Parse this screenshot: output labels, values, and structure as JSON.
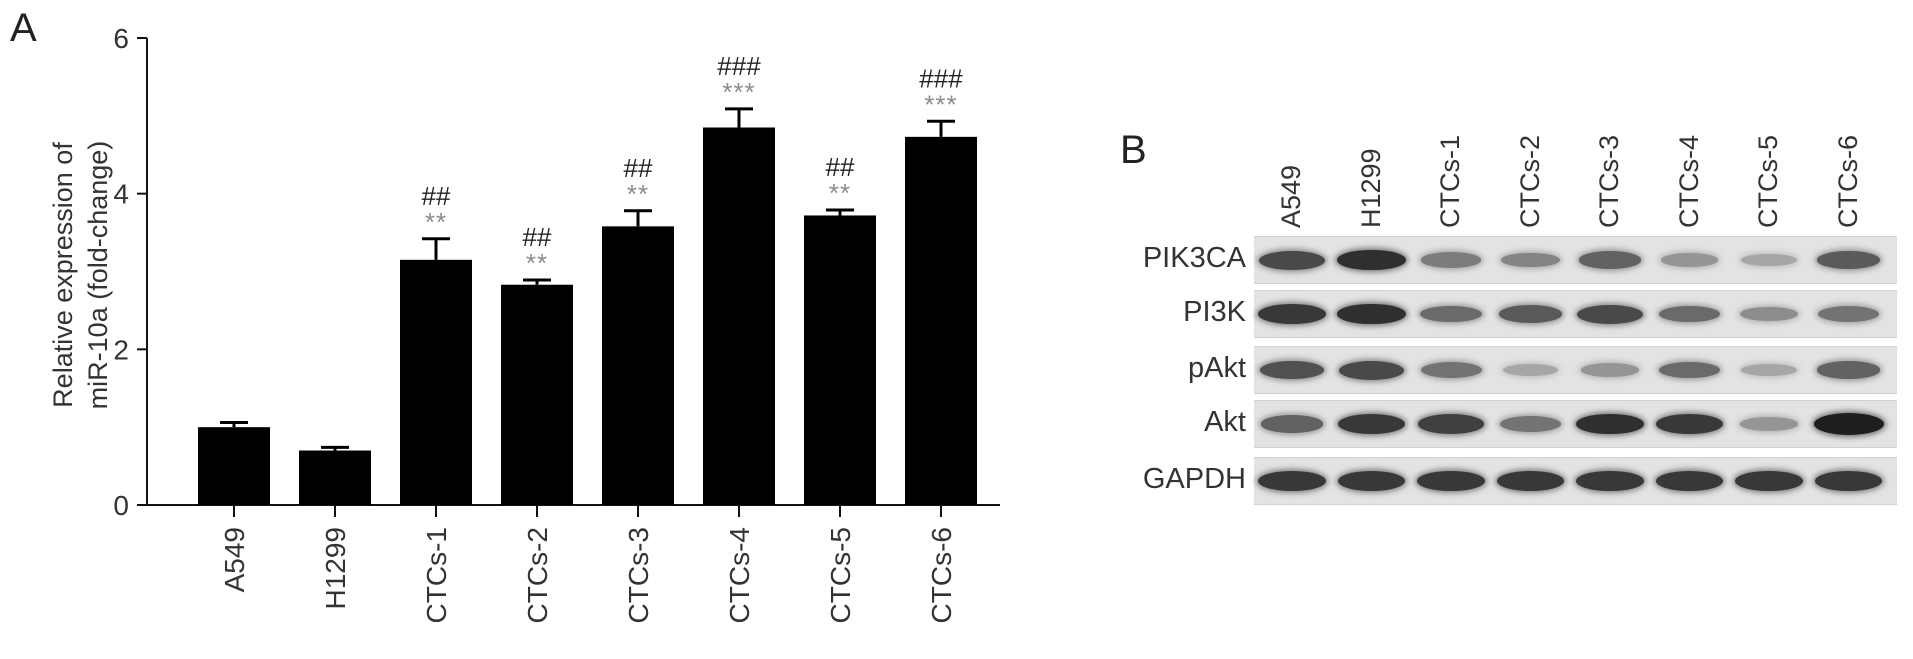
{
  "panel_a_label": "A",
  "panel_b_label": "B",
  "chart_data": {
    "type": "bar",
    "categories": [
      "A549",
      "H1299",
      "CTCs-1",
      "CTCs-2",
      "CTCs-3",
      "CTCs-4",
      "CTCs-5",
      "CTCs-6"
    ],
    "values": [
      1.0,
      0.7,
      3.15,
      2.83,
      3.58,
      4.85,
      3.72,
      4.73
    ],
    "errors": [
      0.06,
      0.04,
      0.27,
      0.06,
      0.2,
      0.24,
      0.07,
      0.2
    ],
    "ylabel_line1": "Relative expression of",
    "ylabel_line2": "miR-10a (fold-change)",
    "xlabel": "",
    "ylim": [
      0,
      6
    ],
    "yticks": [
      "0",
      "2",
      "4",
      "6"
    ],
    "hash_annotations": [
      "",
      "",
      "##",
      "##",
      "##",
      "###",
      "##",
      "###"
    ],
    "star_annotations": [
      "",
      "",
      "**",
      "**",
      "**",
      "***",
      "**",
      "***"
    ],
    "bar_color": "#000000",
    "star_color": "#8c8c8c"
  },
  "blot": {
    "lanes": [
      "A549",
      "H1299",
      "CTCs-1",
      "CTCs-2",
      "CTCs-3",
      "CTCs-4",
      "CTCs-5",
      "CTCs-6"
    ],
    "rows": [
      {
        "name": "PIK3CA",
        "intensity": [
          0.75,
          0.9,
          0.45,
          0.4,
          0.6,
          0.3,
          0.2,
          0.65
        ]
      },
      {
        "name": "PI3K",
        "intensity": [
          0.85,
          0.9,
          0.55,
          0.65,
          0.75,
          0.55,
          0.35,
          0.5
        ]
      },
      {
        "name": "pAkt",
        "intensity": [
          0.7,
          0.75,
          0.5,
          0.2,
          0.3,
          0.55,
          0.2,
          0.6
        ]
      },
      {
        "name": "Akt",
        "intensity": [
          0.6,
          0.85,
          0.8,
          0.5,
          0.9,
          0.85,
          0.3,
          1.0
        ]
      },
      {
        "name": "GAPDH",
        "intensity": [
          0.85,
          0.85,
          0.85,
          0.85,
          0.85,
          0.85,
          0.85,
          0.85
        ]
      }
    ]
  }
}
